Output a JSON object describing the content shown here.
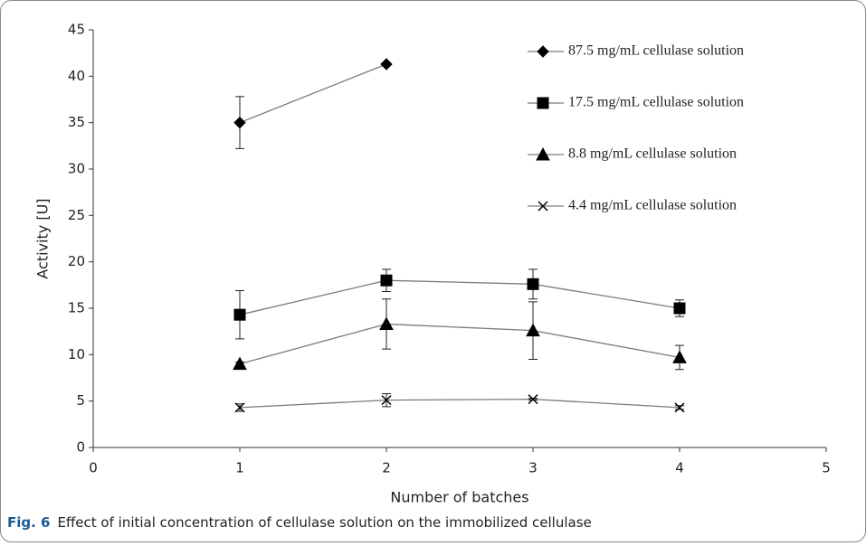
{
  "chart_data": {
    "type": "line",
    "x_label": "Number of batches",
    "y_label": "Activity [U]",
    "caption_label": "Fig. 6",
    "caption": "Effect of initial concentration of cellulase solution on the immobilized cellulase",
    "xlim": [
      0,
      5
    ],
    "xticks": [
      0,
      1,
      2,
      3,
      4,
      5
    ],
    "ylim": [
      0,
      45
    ],
    "yticks": [
      0,
      5,
      10,
      15,
      20,
      25,
      30,
      35,
      40,
      45
    ],
    "grid": false,
    "legend": "upper right",
    "line_color": "#7a7a7a",
    "series": [
      {
        "name": "87.5 mg/mL cellulase solution",
        "marker": "diamond",
        "color": "#000000",
        "x": [
          1,
          2
        ],
        "values": [
          35,
          41.3
        ],
        "errors": [
          2.8,
          null
        ]
      },
      {
        "name": "17.5 mg/mL cellulase solution",
        "marker": "square",
        "color": "#000000",
        "x": [
          1,
          2,
          3,
          4
        ],
        "values": [
          14.3,
          18.0,
          17.6,
          15.0
        ],
        "errors": [
          2.6,
          1.2,
          1.6,
          0.9
        ]
      },
      {
        "name": "8.8 mg/mL cellulase solution",
        "marker": "triangle",
        "color": "#000000",
        "x": [
          1,
          2,
          3,
          4
        ],
        "values": [
          9.0,
          13.3,
          12.6,
          9.7
        ],
        "errors": [
          0.2,
          2.7,
          3.1,
          1.3
        ]
      },
      {
        "name": "4.4 mg/mL cellulase solution",
        "marker": "x",
        "color": "#000000",
        "x": [
          1,
          2,
          3,
          4
        ],
        "values": [
          4.3,
          5.1,
          5.2,
          4.3
        ],
        "errors": [
          0.4,
          0.7,
          0.1,
          0.2
        ]
      }
    ]
  }
}
